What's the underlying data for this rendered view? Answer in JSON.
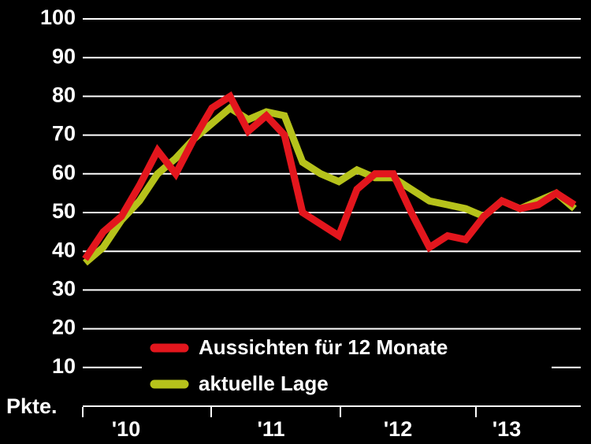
{
  "chart_data": {
    "type": "line",
    "categories": [
      null,
      null,
      "'10",
      null,
      null,
      null,
      null,
      null,
      null,
      null,
      "'11",
      null,
      null,
      null,
      null,
      null,
      null,
      "'12",
      null,
      null,
      null,
      null,
      null,
      "'13",
      null,
      null,
      null,
      null
    ],
    "series": [
      {
        "name": "aktuelle Lage",
        "color": "#b6c21b",
        "values": [
          37,
          41,
          48,
          53,
          60,
          64,
          69,
          73,
          77,
          74,
          76,
          75,
          63,
          60,
          58,
          61,
          59,
          59,
          56,
          53,
          52,
          51,
          49,
          53,
          51,
          53,
          55,
          51
        ]
      },
      {
        "name": "Aussichten für 12 Monate",
        "color": "#e3161d",
        "values": [
          38,
          45,
          49,
          57,
          66,
          60,
          69,
          77,
          80,
          71,
          75,
          70,
          50,
          47,
          44,
          56,
          60,
          60,
          50,
          41,
          44,
          43,
          49,
          53,
          51,
          52,
          55,
          52
        ]
      }
    ],
    "ylim": [
      0,
      100
    ],
    "yticks": [
      {
        "value": 0,
        "label": "Pkte."
      },
      10,
      20,
      30,
      40,
      50,
      60,
      70,
      80,
      90,
      100
    ],
    "grid": true
  }
}
